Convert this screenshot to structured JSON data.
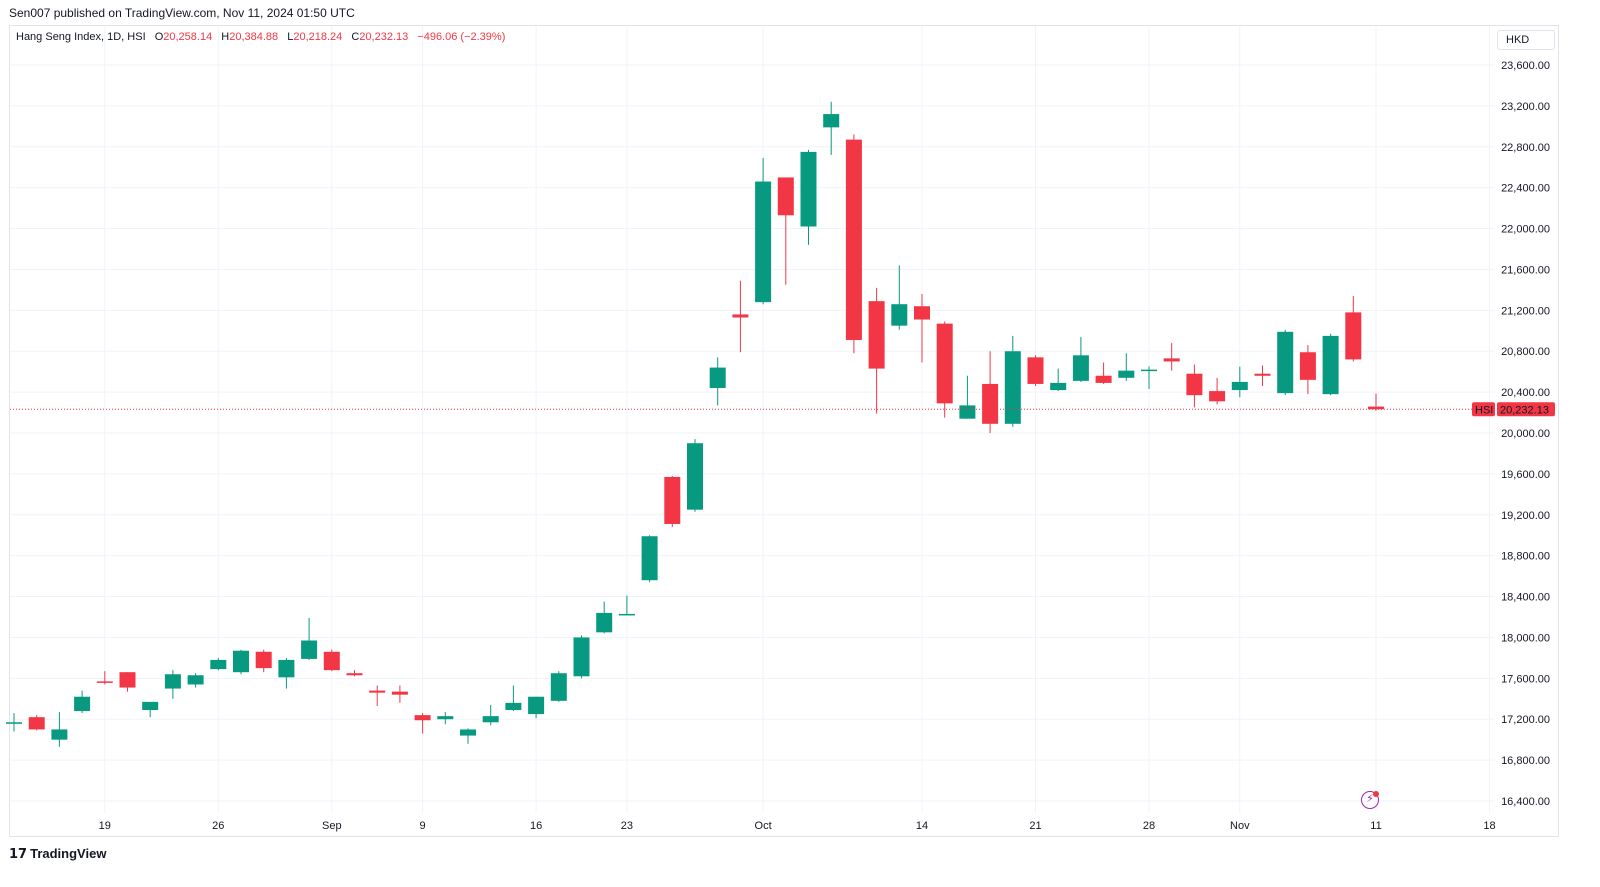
{
  "header": {
    "published": "Sen007 published on TradingView.com, Nov 11, 2024 01:50 UTC"
  },
  "legend": {
    "title": "Hang Seng Index, 1D, HSI",
    "open_label": "O",
    "open": "20,258.14",
    "high_label": "H",
    "high": "20,384.88",
    "low_label": "L",
    "low": "20,218.24",
    "close_label": "C",
    "close": "20,232.13",
    "change": "−496.06 (−2.39%)"
  },
  "currency": "HKD",
  "price_tag": {
    "symbol": "HSI",
    "value": "20,232.13"
  },
  "footer": {
    "logo_text": "TradingView",
    "logo_mark": "17"
  },
  "colors": {
    "up": "#089981",
    "down": "#f23645",
    "grid": "#f0f3fa",
    "price_line": "#f23645"
  },
  "chart_data": {
    "type": "candlestick",
    "title": "Hang Seng Index, 1D, HSI",
    "ylim": [
      16300,
      23800
    ],
    "y_ticks": [
      16400,
      16800,
      17200,
      17600,
      18000,
      18400,
      18800,
      19200,
      19600,
      20000,
      20400,
      20800,
      21200,
      21600,
      22000,
      22400,
      22800,
      23200,
      23600
    ],
    "y_tick_labels": [
      "16,400.00",
      "16,800.00",
      "17,200.00",
      "17,600.00",
      "18,000.00",
      "18,400.00",
      "18,800.00",
      "19,200.00",
      "19,600.00",
      "20,000.00",
      "20,400.00",
      "20,800.00",
      "21,200.00",
      "21,600.00",
      "22,000.00",
      "22,400.00",
      "22,800.00",
      "23,200.00",
      "23,600.00"
    ],
    "x_ticks": [
      {
        "label": "19",
        "index": 4
      },
      {
        "label": "26",
        "index": 9
      },
      {
        "label": "Sep",
        "index": 14
      },
      {
        "label": "9",
        "index": 18
      },
      {
        "label": "16",
        "index": 23
      },
      {
        "label": "23",
        "index": 27
      },
      {
        "label": "Oct",
        "index": 33
      },
      {
        "label": "14",
        "index": 40
      },
      {
        "label": "21",
        "index": 45
      },
      {
        "label": "28",
        "index": 50
      },
      {
        "label": "Nov",
        "index": 54
      },
      {
        "label": "11",
        "index": 60
      },
      {
        "label": "18",
        "index": 65
      }
    ],
    "last_price": 20232.13,
    "candles": [
      {
        "o": 17160,
        "h": 17260,
        "l": 17080,
        "c": 17170
      },
      {
        "o": 17220,
        "h": 17240,
        "l": 17090,
        "c": 17100
      },
      {
        "o": 17000,
        "h": 17270,
        "l": 16930,
        "c": 17100
      },
      {
        "o": 17280,
        "h": 17480,
        "l": 17260,
        "c": 17420
      },
      {
        "o": 17570,
        "h": 17670,
        "l": 17540,
        "c": 17560
      },
      {
        "o": 17660,
        "h": 17660,
        "l": 17470,
        "c": 17510
      },
      {
        "o": 17290,
        "h": 17350,
        "l": 17220,
        "c": 17370
      },
      {
        "o": 17500,
        "h": 17680,
        "l": 17400,
        "c": 17640
      },
      {
        "o": 17540,
        "h": 17650,
        "l": 17510,
        "c": 17630
      },
      {
        "o": 17690,
        "h": 17800,
        "l": 17680,
        "c": 17780
      },
      {
        "o": 17660,
        "h": 17880,
        "l": 17640,
        "c": 17870
      },
      {
        "o": 17860,
        "h": 17880,
        "l": 17660,
        "c": 17700
      },
      {
        "o": 17610,
        "h": 17800,
        "l": 17500,
        "c": 17780
      },
      {
        "o": 17790,
        "h": 18190,
        "l": 17780,
        "c": 17970
      },
      {
        "o": 17860,
        "h": 17880,
        "l": 17670,
        "c": 17680
      },
      {
        "o": 17650,
        "h": 17680,
        "l": 17620,
        "c": 17630
      },
      {
        "o": 17480,
        "h": 17530,
        "l": 17330,
        "c": 17460
      },
      {
        "o": 17470,
        "h": 17530,
        "l": 17360,
        "c": 17440
      },
      {
        "o": 17240,
        "h": 17260,
        "l": 17060,
        "c": 17190
      },
      {
        "o": 17200,
        "h": 17270,
        "l": 17150,
        "c": 17230
      },
      {
        "o": 17040,
        "h": 17110,
        "l": 16960,
        "c": 17100
      },
      {
        "o": 17170,
        "h": 17340,
        "l": 17140,
        "c": 17230
      },
      {
        "o": 17290,
        "h": 17530,
        "l": 17280,
        "c": 17360
      },
      {
        "o": 17250,
        "h": 17420,
        "l": 17210,
        "c": 17420
      },
      {
        "o": 17380,
        "h": 17670,
        "l": 17370,
        "c": 17650
      },
      {
        "o": 17620,
        "h": 18020,
        "l": 17600,
        "c": 18000
      },
      {
        "o": 18050,
        "h": 18350,
        "l": 18040,
        "c": 18240
      },
      {
        "o": 18220,
        "h": 18410,
        "l": 18220,
        "c": 18230
      },
      {
        "o": 18560,
        "h": 19000,
        "l": 18540,
        "c": 18990
      },
      {
        "o": 19570,
        "h": 19580,
        "l": 19080,
        "c": 19110
      },
      {
        "o": 19250,
        "h": 19940,
        "l": 19230,
        "c": 19900
      },
      {
        "o": 20440,
        "h": 20740,
        "l": 20270,
        "c": 20640
      },
      {
        "o": 21160,
        "h": 21490,
        "l": 20790,
        "c": 21130
      },
      {
        "o": 21280,
        "h": 22690,
        "l": 21260,
        "c": 22460
      },
      {
        "o": 22500,
        "h": 22500,
        "l": 21450,
        "c": 22130
      },
      {
        "o": 22020,
        "h": 22770,
        "l": 21840,
        "c": 22750
      },
      {
        "o": 22990,
        "h": 23240,
        "l": 22720,
        "c": 23120
      },
      {
        "o": 22870,
        "h": 22920,
        "l": 20780,
        "c": 20910
      },
      {
        "o": 21290,
        "h": 21420,
        "l": 20190,
        "c": 20630
      },
      {
        "o": 21050,
        "h": 21640,
        "l": 21010,
        "c": 21260
      },
      {
        "o": 21240,
        "h": 21360,
        "l": 20690,
        "c": 21110
      },
      {
        "o": 21070,
        "h": 21090,
        "l": 20150,
        "c": 20290
      },
      {
        "o": 20140,
        "h": 20560,
        "l": 20140,
        "c": 20270
      },
      {
        "o": 20480,
        "h": 20800,
        "l": 20000,
        "c": 20090
      },
      {
        "o": 20090,
        "h": 20950,
        "l": 20060,
        "c": 20800
      },
      {
        "o": 20740,
        "h": 20760,
        "l": 20460,
        "c": 20480
      },
      {
        "o": 20420,
        "h": 20630,
        "l": 20410,
        "c": 20490
      },
      {
        "o": 20510,
        "h": 20940,
        "l": 20500,
        "c": 20760
      },
      {
        "o": 20560,
        "h": 20690,
        "l": 20480,
        "c": 20490
      },
      {
        "o": 20540,
        "h": 20780,
        "l": 20510,
        "c": 20610
      },
      {
        "o": 20610,
        "h": 20650,
        "l": 20430,
        "c": 20620
      },
      {
        "o": 20730,
        "h": 20880,
        "l": 20610,
        "c": 20700
      },
      {
        "o": 20580,
        "h": 20670,
        "l": 20250,
        "c": 20370
      },
      {
        "o": 20410,
        "h": 20540,
        "l": 20280,
        "c": 20310
      },
      {
        "o": 20420,
        "h": 20650,
        "l": 20350,
        "c": 20500
      },
      {
        "o": 20580,
        "h": 20660,
        "l": 20460,
        "c": 20560
      },
      {
        "o": 20390,
        "h": 21010,
        "l": 20370,
        "c": 20990
      },
      {
        "o": 20790,
        "h": 20860,
        "l": 20380,
        "c": 20520
      },
      {
        "o": 20380,
        "h": 20970,
        "l": 20370,
        "c": 20950
      },
      {
        "o": 21180,
        "h": 21340,
        "l": 20700,
        "c": 20720
      },
      {
        "o": 20258.14,
        "h": 20384.88,
        "l": 20218.24,
        "c": 20232.13
      }
    ]
  }
}
